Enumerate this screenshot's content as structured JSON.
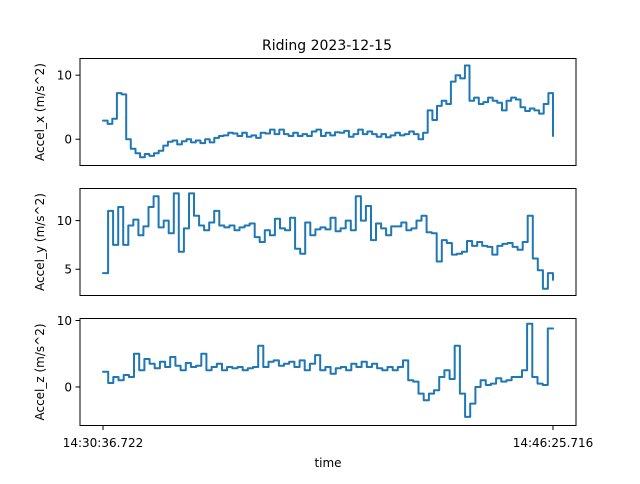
{
  "chart_data": {
    "title": "Riding  2023-12-15",
    "xlabel": "time",
    "x_ticks": [
      "14:30:36.722",
      "14:46:25.716"
    ],
    "x_start": "14:30:36.722",
    "x_end": "14:46:25.716",
    "line_color": "#1f77b4",
    "panels": [
      {
        "type": "line",
        "ylabel": "Accel_x  (m/s^2)",
        "ylim": [
          -4.1,
          12.6
        ],
        "yticks": [
          0,
          10
        ],
        "series": [
          {
            "values": [
              2.9,
              2.4,
              3.2,
              7.2,
              7.0,
              0.0,
              -1.5,
              -2.2,
              -2.8,
              -2.3,
              -2.6,
              -2.2,
              -1.8,
              -1.0,
              -0.4,
              -0.2,
              -0.8,
              -0.3,
              0.0,
              -0.5,
              -0.2,
              -0.6,
              0.0,
              -0.5,
              0.2,
              0.5,
              0.6,
              1.0,
              0.9,
              0.5,
              1.0,
              0.4,
              0.6,
              0.2,
              1.0,
              0.9,
              1.5,
              0.8,
              1.5,
              0.8,
              0.5,
              1.0,
              0.5,
              0.8,
              0.5,
              1.2,
              1.5,
              0.5,
              1.0,
              0.6,
              1.1,
              1.0,
              1.3,
              0.4,
              0.8,
              1.5,
              0.8,
              1.2,
              0.8,
              0.4,
              0.8,
              0.3,
              0.6,
              1.0,
              0.6,
              0.8,
              1.2,
              0.8,
              0.0,
              1.0,
              4.5,
              3.0,
              5.2,
              6.0,
              5.5,
              9.0,
              10.0,
              9.5,
              11.5,
              6.0,
              6.5,
              5.5,
              5.8,
              6.5,
              6.0,
              5.7,
              4.5,
              6.0,
              6.5,
              6.2,
              5.0,
              4.4,
              4.8,
              4.5,
              4.0,
              5.5,
              7.2,
              0.5
            ]
          }
        ]
      },
      {
        "type": "line",
        "ylabel": "Accel_y  (m/s^2)",
        "ylim": [
          2.3,
          13.3
        ],
        "yticks": [
          5,
          10
        ],
        "series": [
          {
            "values": [
              4.6,
              11.0,
              7.5,
              11.4,
              7.5,
              9.5,
              10.1,
              8.5,
              9.4,
              11.4,
              12.5,
              9.3,
              10.0,
              8.7,
              12.8,
              6.8,
              9.2,
              12.8,
              10.5,
              9.5,
              9.0,
              9.8,
              11.0,
              9.5,
              9.3,
              9.5,
              9.0,
              9.3,
              9.5,
              9.7,
              8.3,
              7.8,
              9.0,
              8.5,
              10.2,
              9.2,
              9.0,
              10.3,
              7.1,
              6.6,
              9.8,
              8.5,
              9.1,
              9.3,
              9.1,
              10.3,
              8.9,
              9.2,
              10.0,
              9.0,
              12.5,
              10.0,
              11.5,
              8.0,
              9.7,
              9.2,
              8.5,
              9.4,
              9.4,
              9.8,
              9.0,
              9.2,
              10.0,
              10.5,
              8.8,
              8.7,
              5.8,
              8.0,
              7.7,
              6.5,
              6.6,
              6.8,
              7.9,
              7.4,
              7.8,
              7.4,
              7.3,
              6.5,
              7.4,
              7.6,
              7.7,
              7.3,
              7.0,
              7.8,
              10.5,
              6.1,
              4.9,
              3.0,
              4.6,
              3.9
            ]
          }
        ]
      },
      {
        "type": "line",
        "ylabel": "Accel_z  (m/s^2)",
        "ylim": [
          -5.8,
          10.3
        ],
        "yticks": [
          0,
          10
        ],
        "series": [
          {
            "values": [
              2.3,
              0.6,
              1.5,
              1.0,
              1.8,
              1.5,
              5.0,
              2.5,
              4.2,
              3.5,
              2.8,
              3.8,
              3.0,
              4.5,
              3.2,
              2.5,
              3.6,
              3.0,
              3.2,
              5.0,
              2.5,
              3.0,
              3.5,
              2.5,
              3.0,
              2.8,
              3.0,
              2.5,
              2.8,
              3.0,
              6.2,
              3.0,
              3.8,
              4.0,
              3.2,
              3.5,
              3.8,
              3.0,
              4.0,
              2.5,
              3.5,
              4.8,
              2.5,
              3.0,
              2.0,
              2.8,
              3.0,
              2.5,
              3.5,
              3.0,
              3.8,
              3.0,
              3.5,
              2.8,
              2.5,
              3.0,
              2.5,
              3.0,
              4.0,
              1.0,
              0.8,
              -1.0,
              -2.0,
              -1.0,
              -0.5,
              1.5,
              2.5,
              1.2,
              6.2,
              -1.0,
              -4.5,
              -2.5,
              0.0,
              1.0,
              0.3,
              0.5,
              1.3,
              0.8,
              1.0,
              1.5,
              1.5,
              2.5,
              9.5,
              1.5,
              0.5,
              0.3,
              8.8,
              8.8
            ]
          }
        ]
      }
    ]
  }
}
